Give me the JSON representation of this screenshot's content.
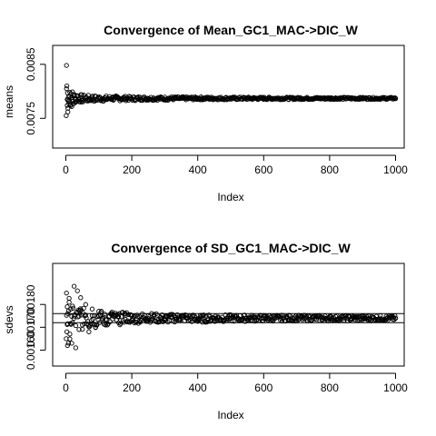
{
  "chart_data": [
    {
      "type": "scatter",
      "title": "Convergence of Mean_GC1_MAC->DIC_W",
      "xlabel": "Index",
      "ylabel": "means",
      "xlim": [
        0,
        1000
      ],
      "ylim": [
        0.00695,
        0.00885
      ],
      "xticks": [
        0,
        200,
        400,
        600,
        800,
        1000
      ],
      "xtick_labels": [
        "0",
        "200",
        "400",
        "600",
        "800",
        "1000"
      ],
      "yticks": [
        0.0075,
        0.0085
      ],
      "ytick_labels": [
        "0.0075",
        "0.0085"
      ],
      "series": [
        {
          "values_note": "cumulative mean by index",
          "x": [
            1,
            2,
            3,
            4,
            5,
            6,
            7,
            8,
            10,
            12,
            14,
            16,
            18,
            20,
            23,
            26,
            30,
            35,
            40,
            45,
            50,
            60,
            70,
            80,
            90,
            100,
            120,
            140,
            160,
            180,
            200,
            250,
            300,
            350,
            400,
            450,
            500,
            600,
            700,
            800,
            900,
            1000
          ],
          "y": [
            0.00755,
            0.00848,
            0.0081,
            0.00774,
            0.00797,
            0.00762,
            0.00785,
            0.0079,
            0.00776,
            0.00798,
            0.00775,
            0.00788,
            0.00772,
            0.00799,
            0.00777,
            0.00794,
            0.0078,
            0.00792,
            0.00781,
            0.00789,
            0.00783,
            0.00788,
            0.00784,
            0.00789,
            0.00784,
            0.00787,
            0.00785,
            0.00788,
            0.00786,
            0.00787,
            0.00786,
            0.00787,
            0.00786,
            0.00787,
            0.00787,
            0.00787,
            0.00787,
            0.00787,
            0.00787,
            0.00787,
            0.00787,
            0.00787
          ]
        }
      ],
      "grid": false,
      "legend": "none"
    },
    {
      "type": "scatter",
      "title": "Convergence of SD_GC1_MAC->DIC_W",
      "xlabel": "Index",
      "ylabel": "sdevs",
      "xlim": [
        0,
        1000
      ],
      "ylim": [
        0.00153,
        0.00198
      ],
      "xticks": [
        0,
        200,
        400,
        600,
        800,
        1000
      ],
      "xtick_labels": [
        "0",
        "200",
        "400",
        "600",
        "800",
        "1000"
      ],
      "yticks": [
        0.0016,
        0.0017,
        0.0018
      ],
      "ytick_labels": [
        "0.00160",
        "0.00170",
        "0.00180"
      ],
      "hlines": [
        0.00176,
        0.00172
      ],
      "series": [
        {
          "values_note": "cumulative standard deviation by index",
          "x": [
            1,
            2,
            3,
            4,
            5,
            6,
            8,
            10,
            12,
            15,
            18,
            20,
            25,
            30,
            35,
            40,
            45,
            50,
            60,
            70,
            80,
            90,
            100,
            120,
            140,
            160,
            180,
            200,
            250,
            300,
            350,
            400,
            450,
            500,
            600,
            700,
            800,
            900,
            1000
          ],
          "y": [
            0.00165,
            0.00185,
            0.00168,
            0.00179,
            0.00162,
            0.00176,
            0.00163,
            0.00181,
            0.00167,
            0.00178,
            0.00163,
            0.00172,
            0.00188,
            0.00161,
            0.00186,
            0.00169,
            0.00183,
            0.00171,
            0.0018,
            0.00168,
            0.00178,
            0.0017,
            0.00177,
            0.00171,
            0.00176,
            0.00172,
            0.00176,
            0.00173,
            0.00175,
            0.00173,
            0.00175,
            0.00173,
            0.00174,
            0.00174,
            0.00174,
            0.00174,
            0.00174,
            0.00174,
            0.00174
          ]
        }
      ],
      "grid": false,
      "legend": "none"
    }
  ]
}
